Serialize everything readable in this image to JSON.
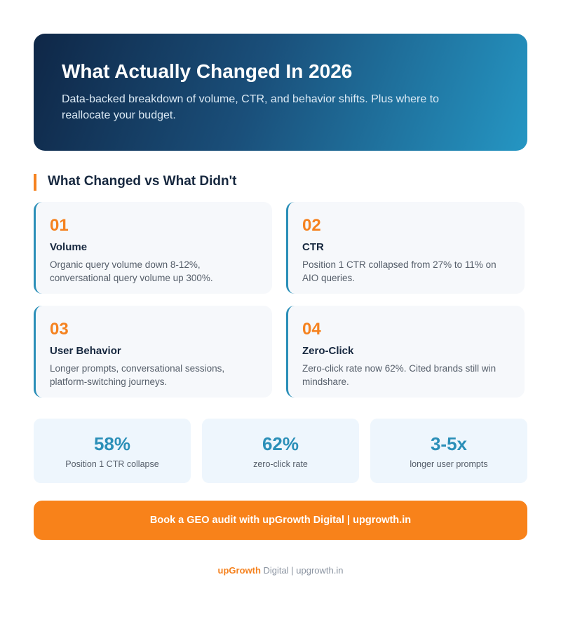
{
  "header": {
    "title": "What Actually Changed In 2026",
    "subtitle": "Data-backed breakdown of volume, CTR, and behavior shifts. Plus where to reallocate your budget."
  },
  "section": {
    "title": "What Changed vs What Didn't"
  },
  "cards": [
    {
      "number": "01",
      "title": "Volume",
      "text": "Organic query volume down 8-12%, conversational query volume up 300%."
    },
    {
      "number": "02",
      "title": "CTR",
      "text": "Position 1 CTR collapsed from 27% to 11% on AIO queries."
    },
    {
      "number": "03",
      "title": "User Behavior",
      "text": "Longer prompts, conversational sessions, platform-switching journeys."
    },
    {
      "number": "04",
      "title": "Zero-Click",
      "text": "Zero-click rate now 62%. Cited brands still win mindshare."
    }
  ],
  "stats": [
    {
      "value": "58%",
      "label": "Position 1 CTR collapse"
    },
    {
      "value": "62%",
      "label": "zero-click rate"
    },
    {
      "value": "3-5x",
      "label": "longer user prompts"
    }
  ],
  "cta": {
    "text": "Book a GEO audit with upGrowth Digital | upgrowth.in"
  },
  "footer": {
    "brand": "upGrowth",
    "rest": "Digital | upgrowth.in"
  }
}
